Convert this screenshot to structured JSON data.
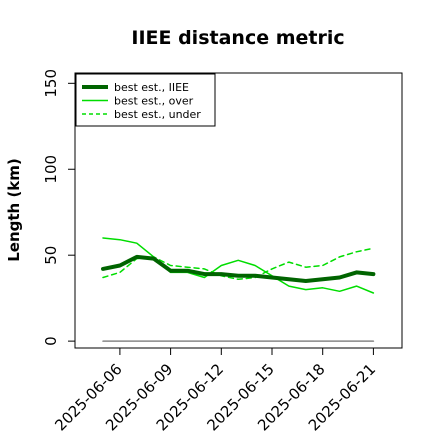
{
  "chart_data": {
    "type": "line",
    "title": "IIEE distance metric",
    "xlabel": "",
    "ylabel": "Length (km)",
    "x": [
      "2025-06-05",
      "2025-06-06",
      "2025-06-07",
      "2025-06-08",
      "2025-06-09",
      "2025-06-10",
      "2025-06-11",
      "2025-06-12",
      "2025-06-13",
      "2025-06-14",
      "2025-06-15",
      "2025-06-16",
      "2025-06-17",
      "2025-06-18",
      "2025-06-19",
      "2025-06-20",
      "2025-06-21"
    ],
    "x_tick_labels": [
      "2025-06-06",
      "2025-06-09",
      "2025-06-12",
      "2025-06-15",
      "2025-06-18",
      "2025-06-21"
    ],
    "y_ticks": [
      0,
      50,
      100,
      150
    ],
    "ylim": [
      -4,
      156
    ],
    "grid": false,
    "legend_position": "top-left",
    "series": [
      {
        "name": "best est., IIEE",
        "color": "#006400",
        "style": "solid",
        "width": 4,
        "values": [
          42,
          44,
          49,
          48,
          41,
          41,
          39,
          39,
          38,
          38,
          37,
          36,
          35,
          36,
          37,
          40,
          39
        ]
      },
      {
        "name": "best est., over",
        "color": "#00dd00",
        "style": "solid",
        "width": 1.5,
        "values": [
          60,
          59,
          57,
          49,
          40,
          40,
          37,
          44,
          47,
          44,
          38,
          32,
          30,
          31,
          29,
          32,
          28
        ]
      },
      {
        "name": "best est., under",
        "color": "#00dd00",
        "style": "dashed",
        "width": 1.5,
        "values": [
          37,
          40,
          48,
          49,
          44,
          43,
          42,
          38,
          36,
          37,
          42,
          46,
          43,
          44,
          49,
          52,
          54
        ]
      },
      {
        "name": "",
        "color": "#888888",
        "style": "solid",
        "width": 1.5,
        "values": [
          0,
          0,
          0,
          0,
          0,
          0,
          0,
          0,
          0,
          0,
          0,
          0,
          0,
          0,
          0,
          0,
          0
        ]
      }
    ]
  }
}
